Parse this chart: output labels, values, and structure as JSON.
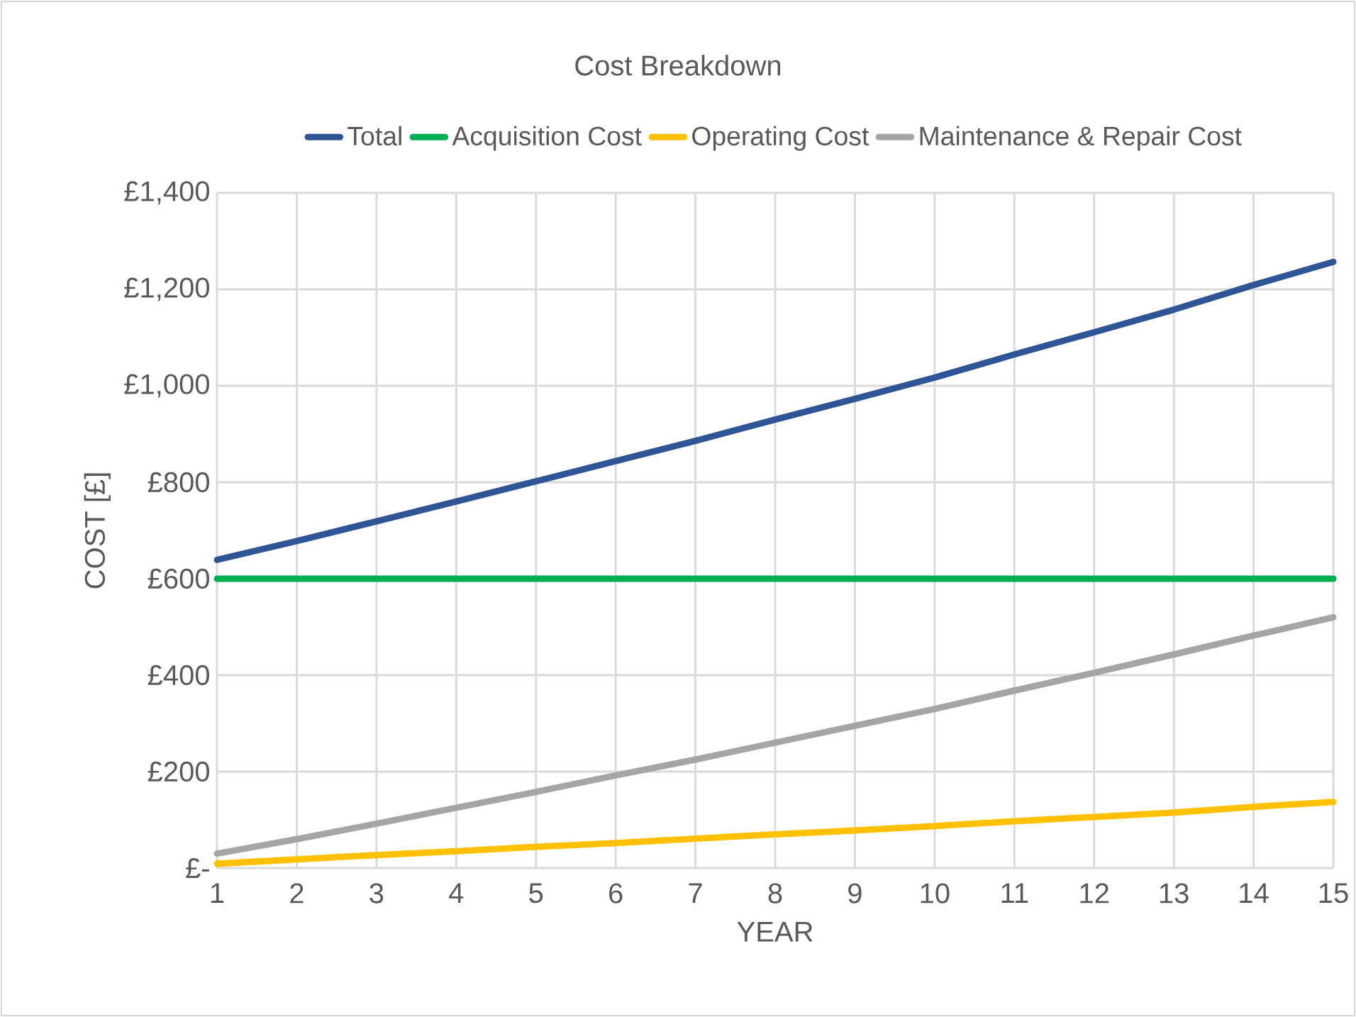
{
  "chart_data": {
    "type": "line",
    "title": "Cost Breakdown",
    "xlabel": "YEAR",
    "ylabel": "COST [£]",
    "categories": [
      "1",
      "2",
      "3",
      "4",
      "5",
      "6",
      "7",
      "8",
      "9",
      "10",
      "11",
      "12",
      "13",
      "14",
      "15"
    ],
    "series": [
      {
        "name": "Total",
        "color": "#2f5597",
        "values": [
          639,
          678,
          719,
          760,
          802,
          844,
          886,
          930,
          973,
          1017,
          1065,
          1111,
          1158,
          1209,
          1257
        ]
      },
      {
        "name": "Acquisition Cost",
        "color": "#00b050",
        "values": [
          600,
          600,
          600,
          600,
          600,
          600,
          600,
          600,
          600,
          600,
          600,
          600,
          600,
          600,
          600
        ]
      },
      {
        "name": "Operating Cost",
        "color": "#ffc000",
        "values": [
          9,
          18,
          27,
          35,
          44,
          52,
          61,
          70,
          78,
          87,
          97,
          106,
          115,
          127,
          137
        ]
      },
      {
        "name": "Maintenance & Repair Cost",
        "color": "#a5a5a5",
        "values": [
          30,
          60,
          92,
          125,
          158,
          192,
          225,
          260,
          295,
          330,
          368,
          405,
          443,
          482,
          520
        ]
      }
    ],
    "ylim": [
      0,
      1400
    ],
    "yticks": [
      {
        "value": 0,
        "label": "£-"
      },
      {
        "value": 200,
        "label": "£200"
      },
      {
        "value": 400,
        "label": "£400"
      },
      {
        "value": 600,
        "label": "£600"
      },
      {
        "value": 800,
        "label": "£800"
      },
      {
        "value": 1000,
        "label": "£1,000"
      },
      {
        "value": 1200,
        "label": "£1,200"
      },
      {
        "value": 1400,
        "label": "£1,400"
      }
    ],
    "grid": true,
    "legend": "top",
    "marker": "none",
    "line_style": "solid"
  }
}
